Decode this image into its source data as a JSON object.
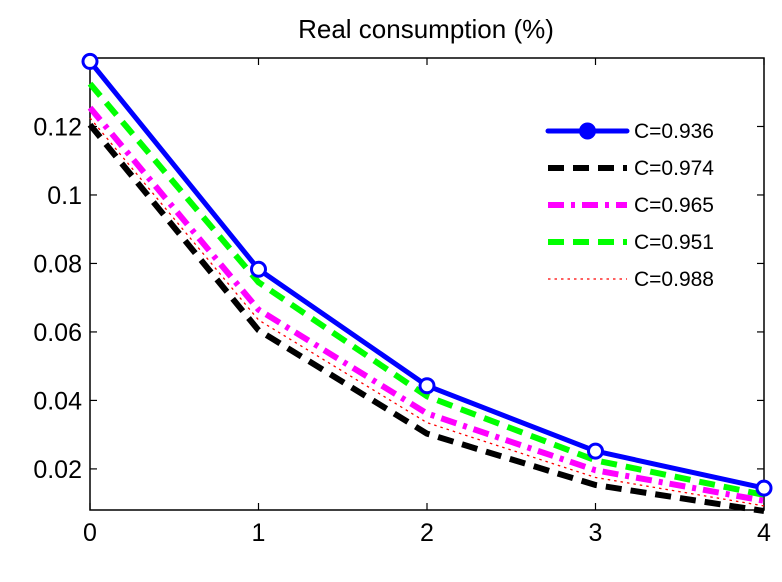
{
  "chart_data": {
    "type": "line",
    "title": "Real consumption (%)",
    "xlabel": "",
    "ylabel": "",
    "x": [
      0,
      1,
      2,
      3,
      4
    ],
    "xlim": [
      0,
      4
    ],
    "ylim": [
      0.008,
      0.14
    ],
    "xticks": [
      "0",
      "1",
      "2",
      "3",
      "4"
    ],
    "yticks": [
      {
        "value": 0.02,
        "label": "0.02"
      },
      {
        "value": 0.04,
        "label": "0.04"
      },
      {
        "value": 0.06,
        "label": "0.06"
      },
      {
        "value": 0.08,
        "label": "0.08"
      },
      {
        "value": 0.1,
        "label": "0.1"
      },
      {
        "value": 0.12,
        "label": "0.12"
      }
    ],
    "grid": false,
    "legend_position": "top-right",
    "series": [
      {
        "name": "C=0.936",
        "values": [
          0.139,
          0.0783,
          0.0443,
          0.0252,
          0.0144
        ],
        "color": "#0000ff",
        "style": "solid",
        "markers": "circle"
      },
      {
        "name": "C=0.974",
        "values": [
          0.1205,
          0.0605,
          0.0303,
          0.0153,
          0.0077
        ],
        "color": "#000000",
        "style": "dashed",
        "markers": "none"
      },
      {
        "name": "C=0.965",
        "values": [
          0.1255,
          0.0665,
          0.0362,
          0.0196,
          0.0107
        ],
        "color": "#ff00ff",
        "style": "dash-dot",
        "markers": "none"
      },
      {
        "name": "C=0.951",
        "values": [
          0.1325,
          0.0745,
          0.0412,
          0.0225,
          0.0124
        ],
        "color": "#00ff00",
        "style": "dashed",
        "markers": "none"
      },
      {
        "name": "C=0.988",
        "values": [
          0.1225,
          0.0635,
          0.0335,
          0.0175,
          0.0092
        ],
        "color": "#ff0000",
        "style": "dotted",
        "markers": "none"
      }
    ]
  }
}
